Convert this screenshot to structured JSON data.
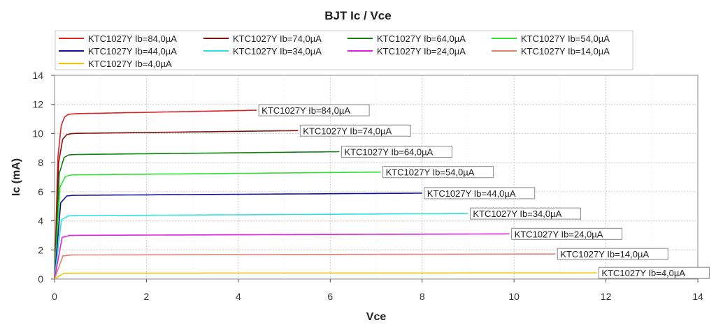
{
  "chart_data": {
    "type": "line",
    "title": "BJT Ic / Vce",
    "xlabel": "Vce",
    "ylabel": "Ic (mA)",
    "xlim": [
      0,
      14
    ],
    "ylim": [
      0,
      14
    ],
    "xticks": [
      "0",
      "2",
      "4",
      "6",
      "8",
      "10",
      "12",
      "14"
    ],
    "yticks": [
      "0",
      "2",
      "4",
      "6",
      "8",
      "10",
      "12",
      "14"
    ],
    "grid": true,
    "legend_position": "top",
    "series": [
      {
        "name": "KTC1027Y Ib=84,0µA",
        "color": "#e02020",
        "x_end": 4.4,
        "ic_sat": 11.35,
        "ic_end": 11.6
      },
      {
        "name": "KTC1027Y Ib=74,0µA",
        "color": "#801010",
        "x_end": 5.3,
        "ic_sat": 10.0,
        "ic_end": 10.2
      },
      {
        "name": "KTC1027Y Ib=64,0µA",
        "color": "#108010",
        "x_end": 6.2,
        "ic_sat": 8.55,
        "ic_end": 8.75
      },
      {
        "name": "KTC1027Y Ib=54,0µA",
        "color": "#30e030",
        "x_end": 7.1,
        "ic_sat": 7.15,
        "ic_end": 7.35
      },
      {
        "name": "KTC1027Y Ib=44,0µA",
        "color": "#1010a0",
        "x_end": 8.0,
        "ic_sat": 5.75,
        "ic_end": 5.9
      },
      {
        "name": "KTC1027Y Ib=34,0µA",
        "color": "#30e0e0",
        "x_end": 9.0,
        "ic_sat": 4.35,
        "ic_end": 4.5
      },
      {
        "name": "KTC1027Y Ib=24,0µA",
        "color": "#e020e0",
        "x_end": 9.9,
        "ic_sat": 3.0,
        "ic_end": 3.1
      },
      {
        "name": "KTC1027Y Ib=14,0µA",
        "color": "#e08070",
        "x_end": 10.9,
        "ic_sat": 1.65,
        "ic_end": 1.72
      },
      {
        "name": "KTC1027Y Ib=4,0µA",
        "color": "#f0c010",
        "x_end": 11.8,
        "ic_sat": 0.4,
        "ic_end": 0.42
      }
    ]
  }
}
